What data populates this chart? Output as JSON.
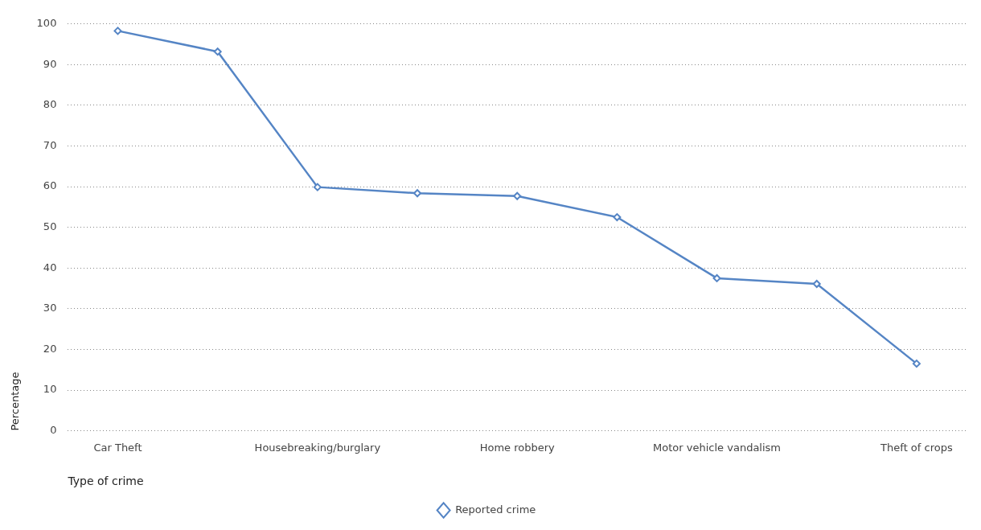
{
  "chart_data": {
    "type": "line",
    "xlabel": "Type of crime",
    "ylabel": "Percentage",
    "categories": [
      "Car Theft",
      null,
      "Housebreaking/burglary",
      null,
      "Home robbery",
      null,
      "Motor vehicle vandalism",
      null,
      "Theft of crops"
    ],
    "series": [
      {
        "name": "Reported crime",
        "color": "#5585c5",
        "values": [
          98.3,
          93.2,
          59.9,
          58.4,
          57.7,
          52.5,
          37.5,
          36.1,
          16.5
        ]
      }
    ],
    "ylim": [
      0,
      100
    ],
    "yticks": [
      0,
      10,
      20,
      30,
      40,
      50,
      60,
      70,
      80,
      90,
      100
    ],
    "grid": "y",
    "legend": "bottom",
    "marker": "diamond",
    "line_style": "solid"
  }
}
